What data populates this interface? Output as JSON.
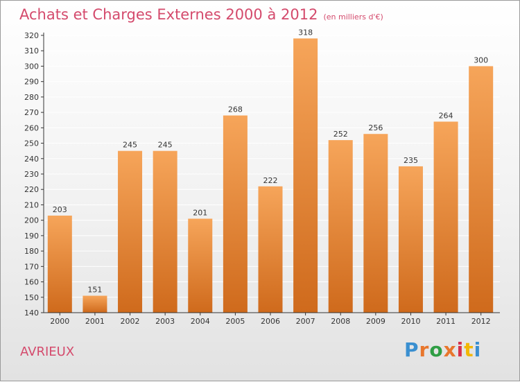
{
  "header": {
    "title": "Achats et Charges Externes 2000 à 2012",
    "unit": "(en milliers d'€)"
  },
  "footer": {
    "commune": "AVRIEUX",
    "logo_text": "Proxiti",
    "logo_colors": [
      "#3a8fd0",
      "#e8762c",
      "#2f9e44",
      "#e8762c",
      "#d6324d",
      "#f2b705",
      "#3a8fd0"
    ]
  },
  "colors": {
    "bar_top": "#f6a55a",
    "bar_bottom": "#cf6a1c",
    "axis": "#333333",
    "grid": "#ffffff",
    "title": "#d44a6c"
  },
  "chart_data": {
    "type": "bar",
    "title": "Achats et Charges Externes 2000 à 2012",
    "subtitle": "(en milliers d'€)",
    "categories": [
      "2000",
      "2001",
      "2002",
      "2003",
      "2004",
      "2005",
      "2006",
      "2007",
      "2008",
      "2009",
      "2010",
      "2011",
      "2012"
    ],
    "values": [
      203,
      151,
      245,
      245,
      201,
      268,
      222,
      318,
      252,
      256,
      235,
      264,
      300
    ],
    "ylim": [
      140,
      320
    ],
    "yticks": [
      140,
      150,
      160,
      170,
      180,
      190,
      200,
      210,
      220,
      230,
      240,
      250,
      260,
      270,
      280,
      290,
      300,
      310,
      320
    ],
    "grid": true,
    "data_labels": true
  }
}
